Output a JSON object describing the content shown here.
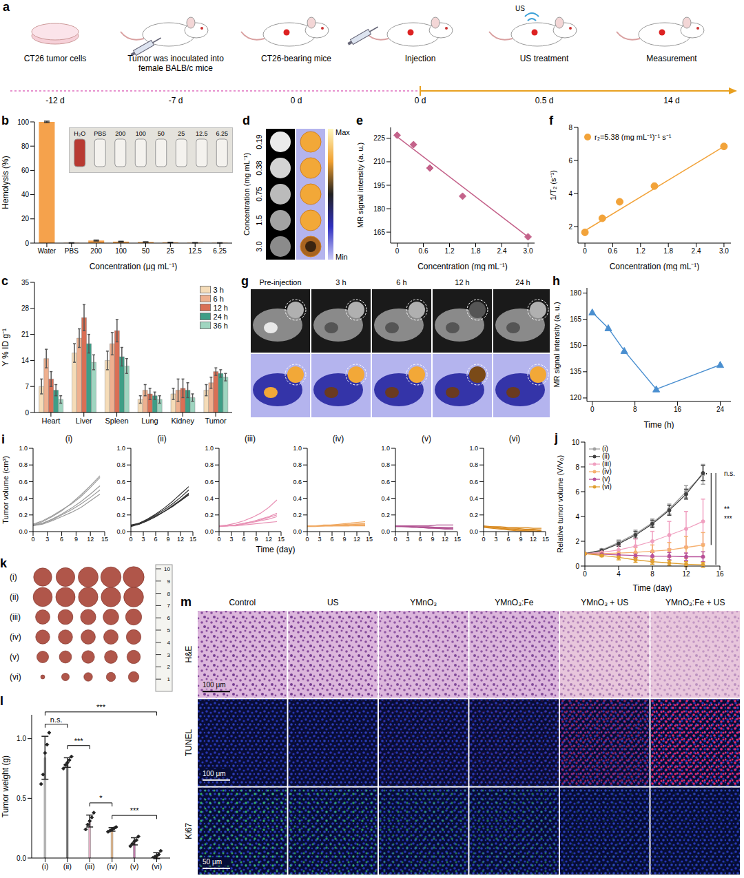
{
  "figure": {
    "a": {
      "panel": "a",
      "steps": [
        {
          "label": "CT26 tumor cells",
          "time": "-12 d"
        },
        {
          "label": "Tumor was inoculated into female BALB/c mice",
          "time": "-7 d"
        },
        {
          "label": "CT26-bearing mice",
          "time": "0 d"
        },
        {
          "label": "Injection",
          "time": "0 d"
        },
        {
          "label": "US treatment",
          "time": "0.5 d"
        },
        {
          "label": "Measurement",
          "time": "14 d"
        }
      ],
      "us_label": "US"
    },
    "d": {
      "panel": "d",
      "y_label": "Concentration (mg mL⁻¹)",
      "concentrations": [
        "0.19",
        "0.38",
        "0.75",
        "1.5",
        "3.0"
      ],
      "colorbar": {
        "max_label": "Max",
        "min_label": "Min"
      }
    },
    "g": {
      "panel": "g",
      "time_points": [
        "Pre-injection",
        "3 h",
        "6 h",
        "12 h",
        "24 h"
      ]
    },
    "k": {
      "panel": "k",
      "groups": [
        "(i)",
        "(ii)",
        "(iii)",
        "(iv)",
        "(v)",
        "(vi)"
      ],
      "ruler_labels": [
        "10",
        "9",
        "8",
        "7",
        "6",
        "5",
        "4",
        "3",
        "2",
        "1"
      ]
    },
    "m": {
      "panel": "m",
      "columns": [
        "Control",
        "US",
        "YMnO₃",
        "YMnO₃:Fe",
        "YMnO₃ + US",
        "YMnO₃:Fe + US"
      ],
      "rows": [
        {
          "stain": "H&E",
          "scale_bar": "100 μm"
        },
        {
          "stain": "TUNEL",
          "scale_bar": "100 μm"
        },
        {
          "stain": "Ki67",
          "scale_bar": "50 μm"
        }
      ]
    }
  },
  "chart_data": [
    {
      "panel": "b",
      "type": "bar",
      "categories": [
        "Water",
        "PBS",
        "200",
        "100",
        "50",
        "25",
        "12.5",
        "6.25"
      ],
      "values": [
        100,
        0.2,
        2.1,
        1.2,
        0.9,
        0.5,
        0.3,
        0.2
      ],
      "errors": [
        0.6,
        0.1,
        0.4,
        0.3,
        0.2,
        0.2,
        0.1,
        0.1
      ],
      "color": "#f5a24c",
      "ylim": [
        0,
        100
      ],
      "yticks": [
        0,
        20,
        40,
        60,
        80,
        100
      ],
      "x_label": "Concentration (μg mL⁻¹)",
      "y_label": "Hemolysis (%)",
      "inset_labels": [
        "H₂O",
        "PBS",
        "200",
        "100",
        "50",
        "25",
        "12.5",
        "6.25"
      ]
    },
    {
      "panel": "c",
      "type": "bar",
      "categories": [
        "Heart",
        "Liver",
        "Spleen",
        "Lung",
        "Kidney",
        "Tumor"
      ],
      "series": [
        {
          "name": "3 h",
          "color": "#f5dcb8",
          "values": [
            7.0,
            16.0,
            14.0,
            3.5,
            5.0,
            6.0
          ],
          "errors": [
            2.0,
            2.5,
            2.5,
            1.0,
            1.5,
            1.5
          ]
        },
        {
          "name": "6 h",
          "color": "#eeb08f",
          "values": [
            14.5,
            20.0,
            18.5,
            6.0,
            6.0,
            8.0
          ],
          "errors": [
            2.5,
            2.5,
            3.0,
            1.5,
            3.0,
            1.5
          ]
        },
        {
          "name": "12 h",
          "color": "#d96f55",
          "values": [
            9.0,
            25.5,
            22.0,
            5.0,
            6.5,
            11.0
          ],
          "errors": [
            2.0,
            3.5,
            3.0,
            1.5,
            2.5,
            1.0
          ]
        },
        {
          "name": "24 h",
          "color": "#3e9e86",
          "values": [
            6.0,
            18.5,
            15.0,
            4.5,
            6.0,
            10.5
          ],
          "errors": [
            1.5,
            2.5,
            2.5,
            1.0,
            2.0,
            1.0
          ]
        },
        {
          "name": "36 h",
          "color": "#9fd5c0",
          "values": [
            3.5,
            13.5,
            12.5,
            3.5,
            4.0,
            9.5
          ],
          "errors": [
            1.0,
            2.0,
            2.0,
            1.0,
            1.0,
            1.0
          ]
        }
      ],
      "ylim": [
        0,
        35
      ],
      "yticks": [
        0,
        7,
        14,
        21,
        28,
        35
      ],
      "y_label": "Y % ID g⁻¹",
      "legend": "top-right"
    },
    {
      "panel": "e",
      "type": "scatter",
      "x": [
        0,
        0.375,
        0.75,
        1.5,
        3
      ],
      "values": [
        227,
        221,
        206,
        188,
        162
      ],
      "color": "#c4628a",
      "marker": "diamond",
      "fit": {
        "x": [
          0,
          3
        ],
        "values": [
          226,
          162
        ]
      },
      "xlim": [
        -0.15,
        3.15
      ],
      "xticks": [
        0,
        0.6,
        1.2,
        1.8,
        2.4,
        {
          "value": 3,
          "label": "3.0"
        }
      ],
      "ylim": [
        158,
        232
      ],
      "yticks": [
        165,
        180,
        195,
        210,
        225
      ],
      "x_label": "Concentration (mg mL⁻¹)",
      "y_label": "MR signal intensity (a. u.)"
    },
    {
      "panel": "f",
      "type": "scatter",
      "x": [
        0,
        0.375,
        0.75,
        1.5,
        3
      ],
      "series": [
        {
          "name": "r₂=5.38 (mg mL⁻¹)⁻¹ s⁻¹",
          "color": "#f2a33a",
          "marker": "circle",
          "values": [
            1.65,
            2.5,
            3.5,
            4.45,
            6.85
          ]
        }
      ],
      "fit": {
        "x": [
          0,
          3
        ],
        "values": [
          1.75,
          6.85
        ]
      },
      "xlim": [
        -0.15,
        3.15
      ],
      "xticks": [
        0,
        0.6,
        1.2,
        1.8,
        2.4,
        {
          "value": 3,
          "label": "3.0"
        }
      ],
      "ylim": [
        1,
        8
      ],
      "yticks": [
        2,
        4,
        6,
        8
      ],
      "x_label": "Concentration (mg mL⁻¹)",
      "y_label": "1/T₂ (s⁻¹)",
      "legend": "top-left"
    },
    {
      "panel": "h",
      "type": "line",
      "x": [
        0,
        3,
        6,
        12,
        24
      ],
      "values": [
        169,
        160,
        147,
        125,
        139
      ],
      "color": "#4a8fd0",
      "marker": "triangle",
      "xlim": [
        -1,
        26
      ],
      "xticks": [
        0,
        8,
        16,
        24
      ],
      "ylim": [
        118,
        183
      ],
      "yticks": [
        120,
        135,
        150,
        165,
        180
      ],
      "x_label": "Time (h)",
      "y_label": "MR signal intensity (a. u.)"
    },
    {
      "panel": "i",
      "type": "line",
      "x": [
        0,
        2,
        4,
        6,
        8,
        10,
        12,
        14
      ],
      "groups": [
        {
          "name": "(i)",
          "color": "#9a9a9a",
          "values": [
            [
              0.08,
              0.12,
              0.18,
              0.25,
              0.34,
              0.44,
              0.55,
              0.67
            ],
            [
              0.09,
              0.13,
              0.19,
              0.26,
              0.33,
              0.42,
              0.53,
              0.65
            ],
            [
              0.07,
              0.1,
              0.15,
              0.21,
              0.28,
              0.36,
              0.45,
              0.55
            ],
            [
              0.08,
              0.1,
              0.14,
              0.2,
              0.26,
              0.33,
              0.41,
              0.5
            ],
            [
              0.07,
              0.09,
              0.13,
              0.18,
              0.23,
              0.29,
              0.37,
              0.45
            ]
          ]
        },
        {
          "name": "(ii)",
          "color": "#333333",
          "values": [
            [
              0.07,
              0.1,
              0.15,
              0.21,
              0.28,
              0.36,
              0.45,
              0.54
            ],
            [
              0.07,
              0.1,
              0.14,
              0.2,
              0.26,
              0.33,
              0.41,
              0.5
            ],
            [
              0.06,
              0.09,
              0.13,
              0.18,
              0.24,
              0.31,
              0.38,
              0.46
            ],
            [
              0.07,
              0.09,
              0.13,
              0.18,
              0.24,
              0.3,
              0.37,
              0.45
            ],
            [
              0.08,
              0.1,
              0.14,
              0.19,
              0.24,
              0.3,
              0.37,
              0.44
            ]
          ]
        },
        {
          "name": "(iii)",
          "color": "#e891b5",
          "values": [
            [
              0.07,
              0.08,
              0.1,
              0.13,
              0.17,
              0.22,
              0.29,
              0.38
            ],
            [
              0.06,
              0.07,
              0.08,
              0.1,
              0.12,
              0.15,
              0.18,
              0.22
            ],
            [
              0.07,
              0.07,
              0.08,
              0.1,
              0.12,
              0.14,
              0.17,
              0.2
            ],
            [
              0.06,
              0.07,
              0.08,
              0.09,
              0.11,
              0.13,
              0.15,
              0.18
            ],
            [
              0.07,
              0.07,
              0.07,
              0.08,
              0.09,
              0.1,
              0.11,
              0.12
            ]
          ]
        },
        {
          "name": "(iv)",
          "color": "#f0a860",
          "values": [
            [
              0.07,
              0.07,
              0.08,
              0.08,
              0.09,
              0.1,
              0.11,
              0.12
            ],
            [
              0.06,
              0.07,
              0.07,
              0.08,
              0.08,
              0.09,
              0.09,
              0.1
            ],
            [
              0.07,
              0.07,
              0.07,
              0.07,
              0.08,
              0.08,
              0.09,
              0.09
            ],
            [
              0.06,
              0.06,
              0.07,
              0.07,
              0.07,
              0.07,
              0.08,
              0.08
            ],
            [
              0.07,
              0.07,
              0.07,
              0.07,
              0.07,
              0.07,
              0.07,
              0.07
            ]
          ]
        },
        {
          "name": "(v)",
          "color": "#b05090",
          "values": [
            [
              0.07,
              0.07,
              0.07,
              0.07,
              0.07,
              0.08,
              0.08,
              0.08
            ],
            [
              0.07,
              0.07,
              0.06,
              0.06,
              0.06,
              0.05,
              0.05,
              0.05
            ],
            [
              0.06,
              0.06,
              0.06,
              0.05,
              0.05,
              0.05,
              0.04,
              0.04
            ],
            [
              0.07,
              0.06,
              0.06,
              0.05,
              0.05,
              0.04,
              0.04,
              0.03
            ],
            [
              0.06,
              0.06,
              0.05,
              0.05,
              0.04,
              0.04,
              0.03,
              0.03
            ]
          ]
        },
        {
          "name": "(vi)",
          "color": "#d98a20",
          "values": [
            [
              0.07,
              0.06,
              0.06,
              0.05,
              0.05,
              0.05,
              0.04,
              0.04
            ],
            [
              0.06,
              0.06,
              0.05,
              0.04,
              0.04,
              0.03,
              0.03,
              0.02
            ],
            [
              0.06,
              0.05,
              0.04,
              0.03,
              0.03,
              0.02,
              0.02,
              0.01
            ],
            [
              0.06,
              0.05,
              0.04,
              0.03,
              0.02,
              0.01,
              0.01,
              0
            ],
            [
              0.05,
              0.04,
              0.03,
              0.02,
              0.01,
              0.01,
              0,
              0
            ]
          ]
        }
      ],
      "xlim": [
        0,
        15
      ],
      "xticks": [
        0,
        3,
        6,
        9,
        12,
        15
      ],
      "ylim": [
        0,
        1
      ],
      "yticks": [
        {
          "value": 0,
          "label": "0.0"
        },
        0.2,
        0.4,
        0.6,
        0.8,
        {
          "value": 1,
          "label": "1.0"
        }
      ],
      "x_label": "Time (day)",
      "y_label": "Tumor volume (cm³)"
    },
    {
      "panel": "j",
      "type": "line",
      "x": [
        0,
        2,
        4,
        6,
        8,
        10,
        12,
        14
      ],
      "series": [
        {
          "name": "(i)",
          "color": "#a0a0a0",
          "values": [
            1,
            1.3,
            1.9,
            2.6,
            3.5,
            4.6,
            6.0,
            7.4
          ],
          "errors": [
            0,
            0.1,
            0.2,
            0.3,
            0.3,
            0.4,
            0.5,
            0.8
          ]
        },
        {
          "name": "(ii)",
          "color": "#404040",
          "values": [
            1,
            1.25,
            1.8,
            2.5,
            3.4,
            4.5,
            5.8,
            7.5
          ],
          "errors": [
            0,
            0.1,
            0.2,
            0.3,
            0.3,
            0.4,
            0.4,
            0.6
          ]
        },
        {
          "name": "(iii)",
          "color": "#f0a0c0",
          "values": [
            1,
            1.1,
            1.3,
            1.6,
            2.0,
            2.5,
            3.0,
            3.6
          ],
          "errors": [
            0,
            0.2,
            0.4,
            0.6,
            0.8,
            1.1,
            1.4,
            1.8
          ]
        },
        {
          "name": "(iv)",
          "color": "#f5b070",
          "values": [
            1,
            1,
            1.05,
            1.1,
            1.2,
            1.3,
            1.5,
            1.7
          ],
          "errors": [
            0,
            0.2,
            0.3,
            0.4,
            0.5,
            0.6,
            0.9,
            1.0
          ]
        },
        {
          "name": "(v)",
          "color": "#b8509a",
          "values": [
            1,
            0.95,
            0.9,
            0.85,
            0.8,
            0.8,
            0.75,
            0.75
          ],
          "errors": [
            0,
            0.1,
            0.2,
            0.2,
            0.3,
            0.3,
            0.3,
            0.4
          ]
        },
        {
          "name": "(vi)",
          "color": "#e0a030",
          "values": [
            1,
            0.85,
            0.7,
            0.5,
            0.35,
            0.25,
            0.15,
            0.1
          ],
          "errors": [
            0,
            0.1,
            0.2,
            0.2,
            0.2,
            0.2,
            0.2,
            0.2
          ]
        }
      ],
      "marker": "circle",
      "xlim": [
        0,
        16
      ],
      "xticks": [
        0,
        4,
        8,
        12,
        16
      ],
      "ylim": [
        0,
        10
      ],
      "yticks": [
        0,
        2,
        4,
        6,
        8,
        10
      ],
      "x_label": "Time (day)",
      "y_label": "Relative tumor volume (V/V₀)",
      "legend": "top-left",
      "significance": [
        {
          "between": [
            "(i)",
            "(ii)"
          ],
          "label": "n.s."
        },
        {
          "between": [
            "(ii)",
            "(iv)"
          ],
          "label": "**"
        },
        {
          "between": [
            "(ii)",
            "(vi)"
          ],
          "label": "***"
        }
      ]
    },
    {
      "panel": "l",
      "type": "bar",
      "categories": [
        "(i)",
        "(ii)",
        "(iii)",
        "(iv)",
        "(v)",
        "(vi)"
      ],
      "values": [
        0.84,
        0.8,
        0.31,
        0.24,
        0.14,
        0.02
      ],
      "errors": [
        0.18,
        0.04,
        0.05,
        0.015,
        0.03,
        0.025
      ],
      "points": [
        [
          0.62,
          0.7,
          0.88,
          0.95,
          1.05
        ],
        [
          0.75,
          0.78,
          0.8,
          0.82,
          0.85
        ],
        [
          0.24,
          0.28,
          0.31,
          0.34,
          0.38
        ],
        [
          0.22,
          0.23,
          0.24,
          0.25,
          0.26
        ],
        [
          0.1,
          0.12,
          0.14,
          0.15,
          0.18
        ],
        [
          0,
          0.01,
          0.02,
          0.03,
          0.06
        ]
      ],
      "colors": [
        "#c8c8c8",
        "#6e6e6e",
        "#f2b8d0",
        "#f5c28a",
        "#c77bb0",
        "#e8a33c"
      ],
      "ylim": [
        0,
        1.2
      ],
      "yticks": [
        {
          "value": 0,
          "label": "0.0"
        },
        0.5,
        {
          "value": 1,
          "label": "1.0"
        }
      ],
      "y_label": "Tumor weight (g)",
      "significance": [
        {
          "between": [
            "(i)",
            "(ii)"
          ],
          "label": "n.s."
        },
        {
          "between": [
            "(ii)",
            "(iii)"
          ],
          "label": "***"
        },
        {
          "between": [
            "(iii)",
            "(iv)"
          ],
          "label": "*"
        },
        {
          "between": [
            "(iv)",
            "(vi)"
          ],
          "label": "***"
        },
        {
          "between": [
            "(i)",
            "(vi)"
          ],
          "label": "***"
        }
      ]
    }
  ]
}
